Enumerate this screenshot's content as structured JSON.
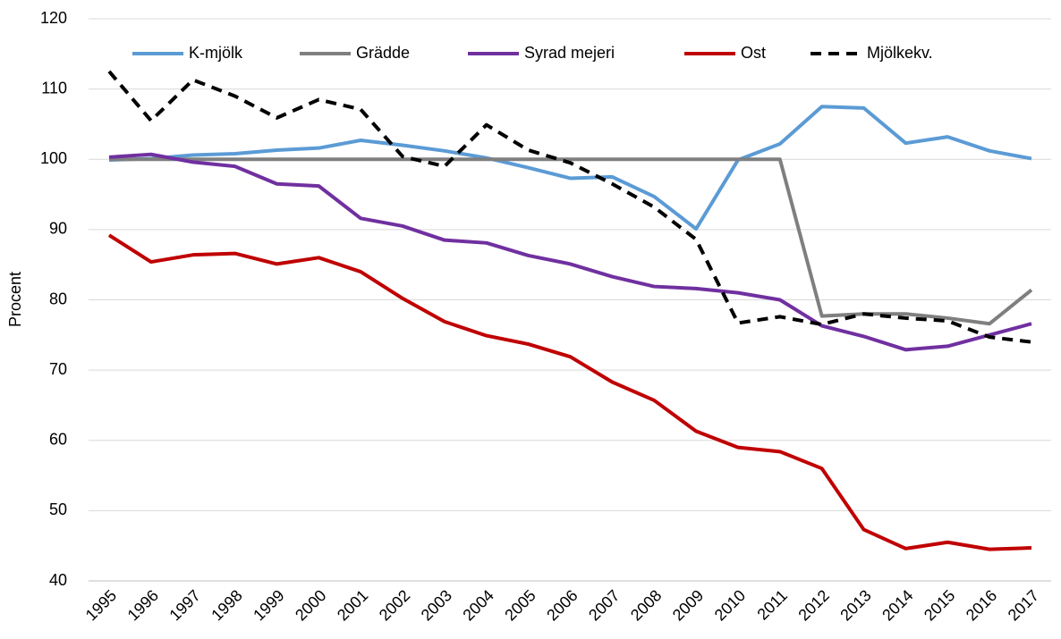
{
  "chart_data": {
    "type": "line",
    "y_label": "Procent",
    "categories": [
      "1995",
      "1996",
      "1997",
      "1998",
      "1999",
      "2000",
      "2001",
      "2002",
      "2003",
      "2004",
      "2005",
      "2006",
      "2007",
      "2008",
      "2009",
      "2010",
      "2011",
      "2012",
      "2013",
      "2014",
      "2015",
      "2016",
      "2017"
    ],
    "series": [
      {
        "name": "K-mjölk",
        "color": "#5b9bd5",
        "values": [
          99.9,
          100.1,
          100.6,
          100.8,
          101.3,
          101.6,
          102.7,
          102.0,
          101.2,
          100.2,
          98.8,
          97.3,
          97.5,
          94.7,
          90.1,
          99.9,
          102.2,
          107.5,
          107.3,
          102.3,
          103.2,
          101.2,
          100.1
        ]
      },
      {
        "name": "Grädde",
        "color": "#7f7f7f",
        "values": [
          100,
          100,
          100,
          100,
          100,
          100,
          100,
          100,
          100,
          100,
          100,
          100,
          100,
          100,
          100,
          100,
          100,
          77.7,
          78.0,
          78.0,
          77.4,
          76.6,
          81.4
        ]
      },
      {
        "name": "Syrad mejeri",
        "color": "#7030a0",
        "values": [
          100.3,
          100.7,
          99.6,
          99.0,
          96.5,
          96.2,
          91.6,
          90.5,
          88.5,
          88.1,
          86.3,
          85.1,
          83.3,
          81.9,
          81.6,
          81.0,
          80.0,
          76.3,
          74.8,
          72.9,
          73.4,
          75.0,
          76.6
        ]
      },
      {
        "name": "Ost",
        "color": "#c00000",
        "values": [
          89.2,
          85.4,
          86.4,
          86.6,
          85.1,
          86.0,
          84.0,
          80.2,
          76.9,
          74.9,
          73.7,
          71.9,
          68.3,
          65.7,
          61.3,
          59.0,
          58.4,
          56.0,
          47.3,
          44.6,
          45.5,
          44.5,
          44.7
        ]
      },
      {
        "name": "Mjölkekv.",
        "color": "#000000",
        "line_style": "dashed",
        "values": [
          112.5,
          105.5,
          111.3,
          109.0,
          105.9,
          108.5,
          107.1,
          100.4,
          99.0,
          104.9,
          101.3,
          99.5,
          96.5,
          93.2,
          88.6,
          76.7,
          77.6,
          76.5,
          78.0,
          77.4,
          77.0,
          74.7,
          74.0
        ]
      }
    ],
    "ylim": [
      40,
      120
    ],
    "yticks": [
      40,
      50,
      60,
      70,
      80,
      90,
      100,
      110,
      120
    ],
    "grid": true,
    "legend": "top"
  }
}
